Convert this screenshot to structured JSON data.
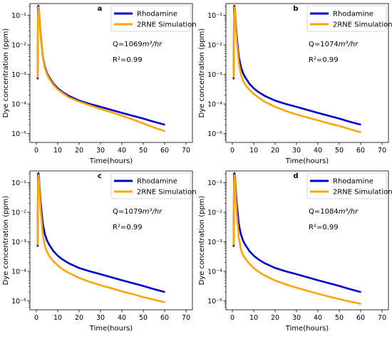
{
  "chart_data": [
    {
      "type": "line",
      "panel_label": "a",
      "xlabel": "Time(hours)",
      "ylabel": "Dye concentration (ppm)",
      "xlim": [
        -3,
        73
      ],
      "xticks": [
        "0",
        "10",
        "20",
        "30",
        "40",
        "50",
        "60",
        "70"
      ],
      "ylim": [
        5e-06,
        0.25
      ],
      "y_scale": "log",
      "yticks": [
        "10⁻¹",
        "10⁻²",
        "10⁻³",
        "10⁻⁴",
        "10⁻⁵"
      ],
      "flow_prefix": "Q=1069",
      "flow_unit": "m³/hr",
      "r2_label": "R²=0.99",
      "legend_position": "top-right",
      "series": [
        {
          "name": "Rhodamine",
          "color": "#0000cc",
          "x": [
            0.6,
            0.8,
            1.0,
            1.2,
            1.5,
            2,
            3,
            4,
            5,
            6,
            8,
            10,
            12,
            15,
            20,
            25,
            30,
            35,
            40,
            45,
            50,
            55,
            60
          ],
          "y": [
            0.0007,
            0.2,
            0.21,
            0.16,
            0.07,
            0.022,
            0.004,
            0.0018,
            0.0011,
            0.0008,
            0.00048,
            0.00034,
            0.00026,
            0.00019,
            0.00013,
            0.0001,
            8e-05,
            6.3e-05,
            5e-05,
            4e-05,
            3.2e-05,
            2.5e-05,
            2e-05
          ]
        },
        {
          "name": "2RNE Simulation",
          "color": "#ffa500",
          "x": [
            0.6,
            0.8,
            1.0,
            1.2,
            1.5,
            2,
            3,
            4,
            5,
            6,
            8,
            10,
            12,
            15,
            20,
            25,
            30,
            35,
            40,
            45,
            50,
            55,
            60
          ],
          "y": [
            0.0008,
            0.1,
            0.19,
            0.15,
            0.065,
            0.02,
            0.0038,
            0.0016,
            0.001,
            0.00072,
            0.00044,
            0.00031,
            0.00024,
            0.00017,
            0.00012,
            9e-05,
            6.8e-05,
            5.3e-05,
            4e-05,
            3e-05,
            2.2e-05,
            1.6e-05,
            1.2e-05
          ]
        }
      ]
    },
    {
      "type": "line",
      "panel_label": "b",
      "xlabel": "Time(hours)",
      "ylabel": "Dye concentration (ppm)",
      "xlim": [
        -3,
        73
      ],
      "xticks": [
        "0",
        "10",
        "20",
        "30",
        "40",
        "50",
        "60",
        "70"
      ],
      "ylim": [
        5e-06,
        0.25
      ],
      "y_scale": "log",
      "yticks": [
        "10⁻¹",
        "10⁻²",
        "10⁻³",
        "10⁻⁴",
        "10⁻⁵"
      ],
      "flow_prefix": "Q=1074",
      "flow_unit": "m³/hr",
      "r2_label": "R²=0.99",
      "legend_position": "top-right",
      "series": [
        {
          "name": "Rhodamine",
          "color": "#0000cc",
          "x": [
            0.6,
            0.8,
            1.0,
            1.2,
            1.5,
            2,
            3,
            4,
            5,
            6,
            8,
            10,
            12,
            15,
            20,
            25,
            30,
            35,
            40,
            45,
            50,
            55,
            60
          ],
          "y": [
            0.0007,
            0.2,
            0.21,
            0.16,
            0.07,
            0.022,
            0.004,
            0.0018,
            0.0011,
            0.0008,
            0.00048,
            0.00034,
            0.00026,
            0.00019,
            0.00013,
            0.0001,
            8e-05,
            6.3e-05,
            5e-05,
            4e-05,
            3.2e-05,
            2.5e-05,
            2e-05
          ]
        },
        {
          "name": "2RNE Simulation",
          "color": "#ffa500",
          "x": [
            0.6,
            0.8,
            1.0,
            1.2,
            1.5,
            2,
            3,
            4,
            5,
            6,
            8,
            10,
            12,
            15,
            20,
            25,
            30,
            35,
            40,
            45,
            50,
            55,
            60
          ],
          "y": [
            0.0008,
            0.1,
            0.19,
            0.14,
            0.055,
            0.015,
            0.0025,
            0.001,
            0.00062,
            0.00045,
            0.0003,
            0.00022,
            0.00017,
            0.00012,
            8e-05,
            5.8e-05,
            4.4e-05,
            3.5e-05,
            2.8e-05,
            2.2e-05,
            1.8e-05,
            1.4e-05,
            1.1e-05
          ]
        }
      ]
    },
    {
      "type": "line",
      "panel_label": "c",
      "xlabel": "Time(hours)",
      "ylabel": "Dye concentration (ppm)",
      "xlim": [
        -3,
        73
      ],
      "xticks": [
        "0",
        "10",
        "20",
        "30",
        "40",
        "50",
        "60",
        "70"
      ],
      "ylim": [
        5e-06,
        0.25
      ],
      "y_scale": "log",
      "yticks": [
        "10⁻¹",
        "10⁻²",
        "10⁻³",
        "10⁻⁴",
        "10⁻⁵"
      ],
      "flow_prefix": "Q=1079",
      "flow_unit": "m³/hr",
      "r2_label": "R²=0.99",
      "legend_position": "top-right",
      "series": [
        {
          "name": "Rhodamine",
          "color": "#0000cc",
          "x": [
            0.6,
            0.8,
            1.0,
            1.2,
            1.5,
            2,
            3,
            4,
            5,
            6,
            8,
            10,
            12,
            15,
            20,
            25,
            30,
            35,
            40,
            45,
            50,
            55,
            60
          ],
          "y": [
            0.0007,
            0.2,
            0.21,
            0.16,
            0.07,
            0.022,
            0.004,
            0.0018,
            0.0011,
            0.0008,
            0.00048,
            0.00034,
            0.00026,
            0.00019,
            0.00013,
            0.0001,
            8e-05,
            6.3e-05,
            5e-05,
            4e-05,
            3.2e-05,
            2.5e-05,
            2e-05
          ]
        },
        {
          "name": "2RNE Simulation",
          "color": "#ffa500",
          "x": [
            0.6,
            0.8,
            1.0,
            1.2,
            1.5,
            2,
            3,
            4,
            5,
            6,
            8,
            10,
            12,
            15,
            20,
            25,
            30,
            35,
            40,
            45,
            50,
            55,
            60
          ],
          "y": [
            0.0008,
            0.1,
            0.18,
            0.13,
            0.05,
            0.012,
            0.0018,
            0.0007,
            0.00045,
            0.00033,
            0.00022,
            0.00016,
            0.00012,
            9e-05,
            6e-05,
            4.4e-05,
            3.4e-05,
            2.7e-05,
            2.1e-05,
            1.7e-05,
            1.35e-05,
            1.1e-05,
            9e-06
          ]
        }
      ]
    },
    {
      "type": "line",
      "panel_label": "d",
      "xlabel": "Time(hours)",
      "ylabel": "Dye concentration (ppm)",
      "xlim": [
        -3,
        73
      ],
      "xticks": [
        "0",
        "10",
        "20",
        "30",
        "40",
        "50",
        "60",
        "70"
      ],
      "ylim": [
        5e-06,
        0.25
      ],
      "y_scale": "log",
      "yticks": [
        "10⁻¹",
        "10⁻²",
        "10⁻³",
        "10⁻⁴",
        "10⁻⁵"
      ],
      "flow_prefix": "Q=1084",
      "flow_unit": "m³/hr",
      "r2_label": "R²=0.99",
      "legend_position": "top-right",
      "series": [
        {
          "name": "Rhodamine",
          "color": "#0000cc",
          "x": [
            0.6,
            0.8,
            1.0,
            1.2,
            1.5,
            2,
            3,
            4,
            5,
            6,
            8,
            10,
            12,
            15,
            20,
            25,
            30,
            35,
            40,
            45,
            50,
            55,
            60
          ],
          "y": [
            0.0007,
            0.2,
            0.21,
            0.16,
            0.07,
            0.022,
            0.004,
            0.0018,
            0.0011,
            0.0008,
            0.00048,
            0.00034,
            0.00026,
            0.00019,
            0.00013,
            0.0001,
            8e-05,
            6.3e-05,
            5e-05,
            4e-05,
            3.2e-05,
            2.5e-05,
            2e-05
          ]
        },
        {
          "name": "2RNE Simulation",
          "color": "#ffa500",
          "x": [
            0.6,
            0.8,
            1.0,
            1.2,
            1.5,
            2,
            3,
            4,
            5,
            6,
            8,
            10,
            12,
            15,
            20,
            25,
            30,
            35,
            40,
            45,
            50,
            55,
            60
          ],
          "y": [
            0.0008,
            0.1,
            0.18,
            0.12,
            0.045,
            0.01,
            0.0014,
            0.00055,
            0.00036,
            0.00027,
            0.00018,
            0.00013,
            0.0001,
            7.3e-05,
            4.9e-05,
            3.6e-05,
            2.8e-05,
            2.2e-05,
            1.75e-05,
            1.4e-05,
            1.15e-05,
            9.5e-06,
            8e-06
          ]
        }
      ]
    }
  ]
}
